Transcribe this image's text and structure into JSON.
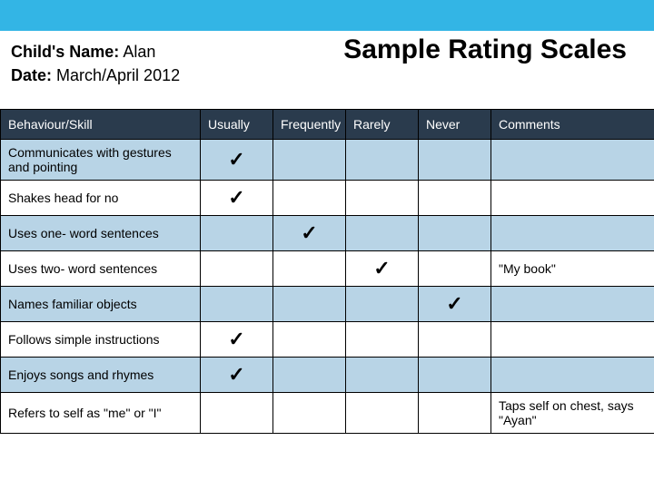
{
  "colors": {
    "top_bar": "#33b5e5",
    "header_row": "#2a3b4d",
    "row_alt": "#b8d4e6",
    "row_plain": "#ffffff",
    "border": "#000000",
    "text": "#000000",
    "header_text": "#ffffff"
  },
  "title": "Sample Rating Scales",
  "meta": {
    "child_label": "Child's Name:",
    "child_value": "Alan",
    "date_label": "Date:",
    "date_value": "March/April 2012"
  },
  "columns": {
    "skill": "Behaviour/Skill",
    "usually": "Usually",
    "frequently": "Frequently",
    "rarely": "Rarely",
    "never": "Never",
    "comments": "Comments"
  },
  "check_mark": "✓",
  "rows": [
    {
      "skill": "Communicates with gestures and pointing",
      "usually": true,
      "frequently": false,
      "rarely": false,
      "never": false,
      "comment": ""
    },
    {
      "skill": "Shakes head for no",
      "usually": true,
      "frequently": false,
      "rarely": false,
      "never": false,
      "comment": ""
    },
    {
      "skill": "Uses one- word sentences",
      "usually": false,
      "frequently": true,
      "rarely": false,
      "never": false,
      "comment": ""
    },
    {
      "skill": "Uses two- word sentences",
      "usually": false,
      "frequently": false,
      "rarely": true,
      "never": false,
      "comment": "\"My book\""
    },
    {
      "skill": "Names familiar objects",
      "usually": false,
      "frequently": false,
      "rarely": false,
      "never": true,
      "comment": ""
    },
    {
      "skill": "Follows simple instructions",
      "usually": true,
      "frequently": false,
      "rarely": false,
      "never": false,
      "comment": ""
    },
    {
      "skill": "Enjoys songs and rhymes",
      "usually": true,
      "frequently": false,
      "rarely": false,
      "never": false,
      "comment": ""
    },
    {
      "skill": "Refers to self as \"me\" or \"I\"",
      "usually": false,
      "frequently": false,
      "rarely": false,
      "never": false,
      "comment": "Taps self on chest, says \"Ayan\""
    }
  ]
}
